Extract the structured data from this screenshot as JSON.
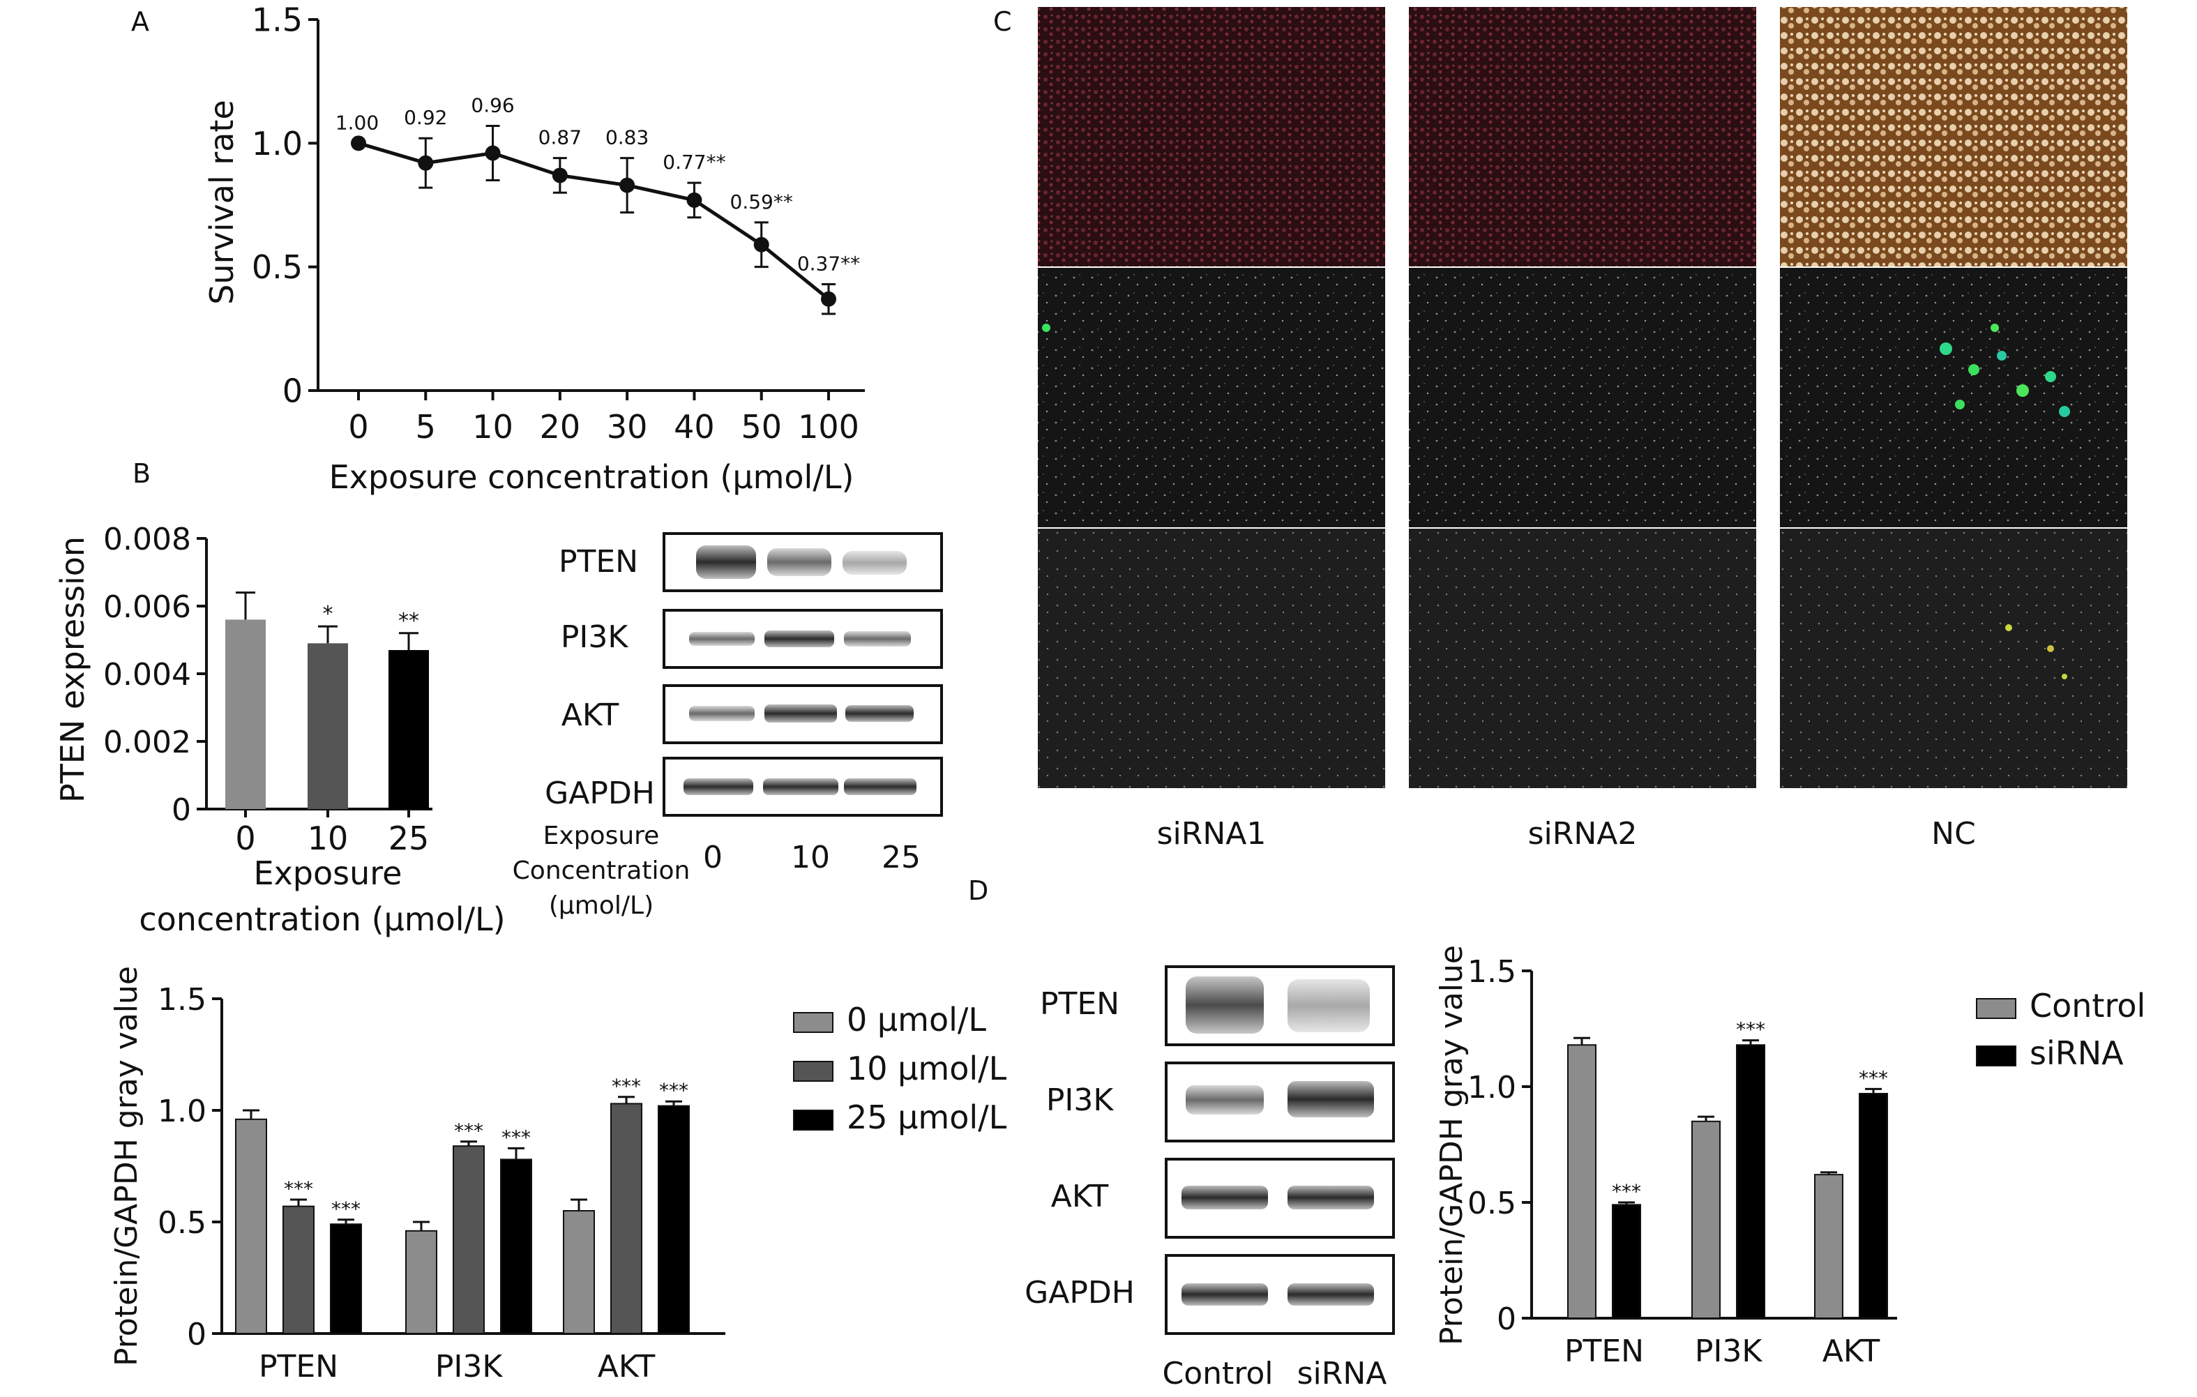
{
  "panel_letters": {
    "A": "A",
    "B": "B",
    "C": "C",
    "D": "D"
  },
  "colors": {
    "series": [
      "#8c8c8c",
      "#555555",
      "#000000"
    ],
    "control": "#8c8c8c",
    "sirna": "#000000",
    "photo_red": "#5a1a22",
    "photo_brown": "#8a5523",
    "photo_dark": "#1a1a1a"
  },
  "chart_data": [
    {
      "id": "A",
      "type": "line",
      "x": [
        "0",
        "5",
        "10",
        "20",
        "30",
        "40",
        "50",
        "100"
      ],
      "y": [
        1.0,
        0.92,
        0.96,
        0.87,
        0.83,
        0.77,
        0.59,
        0.37
      ],
      "error": [
        0.0,
        0.1,
        0.11,
        0.07,
        0.11,
        0.07,
        0.09,
        0.06
      ],
      "point_labels": [
        "1.00",
        "0.92",
        "0.96",
        "0.87",
        "0.83",
        "0.77**",
        "0.59**",
        "0.37**"
      ],
      "xlabel": "Exposure concentration (µmol/L)",
      "ylabel": "Survival rate",
      "ylim": [
        0,
        1.5
      ],
      "yticks": [
        "0",
        "0.5",
        "1.0",
        "1.5"
      ],
      "ytick_values": [
        0,
        0.5,
        1.0,
        1.5
      ]
    },
    {
      "id": "B1",
      "type": "bar",
      "categories": [
        "0",
        "10",
        "25"
      ],
      "values": [
        0.0056,
        0.0049,
        0.0047
      ],
      "error": [
        0.0008,
        0.0005,
        0.0005
      ],
      "annotations": [
        "",
        "*",
        "**"
      ],
      "xlabel": "Exposure concentration (µmol/L)",
      "ylabel": "PTEN expression",
      "ylim": [
        0,
        0.008
      ],
      "yticks": [
        "0",
        "0.002",
        "0.004",
        "0.006",
        "0.008"
      ],
      "ytick_values": [
        0,
        0.002,
        0.004,
        0.006,
        0.008
      ]
    },
    {
      "id": "B2",
      "type": "bar",
      "categories": [
        "PTEN",
        "PI3K",
        "AKT"
      ],
      "series": [
        {
          "name": "0 µmol/L",
          "values": [
            0.96,
            0.46,
            0.55
          ],
          "error": [
            0.04,
            0.04,
            0.05
          ],
          "annotations": [
            "",
            "",
            ""
          ]
        },
        {
          "name": "10 µmol/L",
          "values": [
            0.57,
            0.84,
            1.03
          ],
          "error": [
            0.03,
            0.02,
            0.03
          ],
          "annotations": [
            "***",
            "***",
            "***"
          ]
        },
        {
          "name": "25 µmol/L",
          "values": [
            0.49,
            0.78,
            1.02
          ],
          "error": [
            0.02,
            0.05,
            0.02
          ],
          "annotations": [
            "***",
            "***",
            "***"
          ]
        }
      ],
      "ylabel": "Protein/GAPDH gray value",
      "ylim": [
        0,
        1.5
      ],
      "yticks": [
        "0",
        "0.5",
        "1.0",
        "1.5"
      ],
      "ytick_values": [
        0,
        0.5,
        1.0,
        1.5
      ],
      "legend": "right"
    },
    {
      "id": "D",
      "type": "bar",
      "categories": [
        "PTEN",
        "PI3K",
        "AKT"
      ],
      "series": [
        {
          "name": "Control",
          "values": [
            1.18,
            0.85,
            0.62
          ],
          "error": [
            0.03,
            0.02,
            0.01
          ],
          "annotations": [
            "",
            "",
            ""
          ]
        },
        {
          "name": "siRNA",
          "values": [
            0.49,
            1.18,
            0.97
          ],
          "error": [
            0.01,
            0.02,
            0.02
          ],
          "annotations": [
            "***",
            "***",
            "***"
          ]
        }
      ],
      "ylabel": "Protein/GAPDH gray value",
      "ylim": [
        0,
        1.5
      ],
      "yticks": [
        "0",
        "0.5",
        "1.0",
        "1.5"
      ],
      "ytick_values": [
        0,
        0.5,
        1.0,
        1.5
      ],
      "legend": "right"
    }
  ],
  "blot_B": {
    "rows": [
      "PTEN",
      "PI3K",
      "AKT",
      "GAPDH"
    ],
    "axis_title_line1": "Exposure",
    "axis_title_line2": "Concentration",
    "axis_title_line3": "(µmol/L)",
    "lanes": [
      "0",
      "10",
      "25"
    ]
  },
  "blot_D": {
    "rows": [
      "PTEN",
      "PI3K",
      "AKT",
      "GAPDH"
    ],
    "lanes": [
      "Control",
      "siRNA"
    ]
  },
  "panel_C": {
    "columns": [
      "siRNA1",
      "siRNA2",
      "NC"
    ]
  }
}
